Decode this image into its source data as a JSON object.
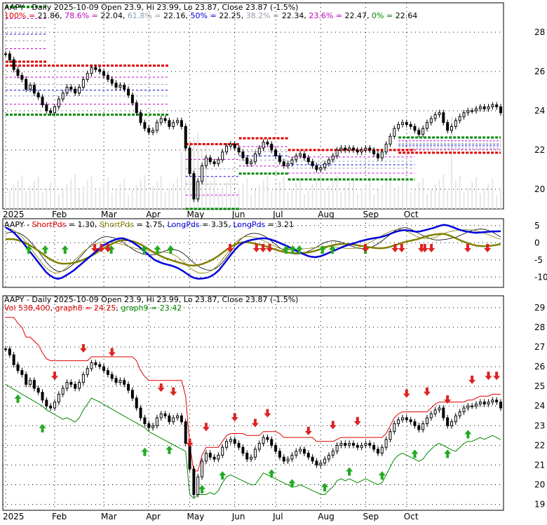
{
  "colors": {
    "red": "#dd0000",
    "green": "#008800",
    "blue": "#0000dd",
    "olive": "#808000",
    "fib_786": "#c000c0",
    "fib_618": "#8fa0b0",
    "fib_382": "#8fa0b0",
    "fib_236": "#c000c0",
    "fib_0": "#008800"
  },
  "chart_data": [
    {
      "type": "candlestick",
      "panel": "fibonacci",
      "title": "AAPY - Daily 2025-10-09 Open 23.9, Hi 23.99, Lo 23.87, Close 23.87 (-1.5%)",
      "fib_legend": [
        {
          "label": "100%",
          "value": "21.86",
          "color_key": "red"
        },
        {
          "label": "78.6%",
          "value": "22.04",
          "color_key": "fib_786"
        },
        {
          "label": "61.8%",
          "value": "22.16",
          "color_key": "fib_618"
        },
        {
          "label": "50%",
          "value": "22.25",
          "color_key": "blue"
        },
        {
          "label": "38.2%",
          "value": "22.34",
          "color_key": "fib_382"
        },
        {
          "label": "23.6%",
          "value": "22.47",
          "color_key": "fib_236"
        },
        {
          "label": "0%",
          "value": "22.64",
          "color_key": "fib_0"
        }
      ],
      "yticks": [
        "20",
        "22",
        "24",
        "26",
        "28"
      ],
      "ylim": [
        19,
        29.5
      ],
      "xticks": [
        "2025",
        "Feb",
        "Mar",
        "Apr",
        "May",
        "Jun",
        "Jul",
        "Aug",
        "Sep",
        "Oct"
      ],
      "closes": [
        26.9,
        26.6,
        26.1,
        25.8,
        25.6,
        25.1,
        25.3,
        24.9,
        24.7,
        24.3,
        24.0,
        23.9,
        24.2,
        24.6,
        24.9,
        25.2,
        25.1,
        24.9,
        25.2,
        25.6,
        25.9,
        26.2,
        26.1,
        26.0,
        25.8,
        25.6,
        25.4,
        25.2,
        25.3,
        25.1,
        24.8,
        24.4,
        23.9,
        23.4,
        23.1,
        22.9,
        23.0,
        23.4,
        23.6,
        23.5,
        23.2,
        23.4,
        23.5,
        23.2,
        22.1,
        20.8,
        19.5,
        20.4,
        21.2,
        21.6,
        21.4,
        21.3,
        21.5,
        21.9,
        22.2,
        22.3,
        22.1,
        21.9,
        21.6,
        21.3,
        21.4,
        21.8,
        22.1,
        22.4,
        22.3,
        22.0,
        21.7,
        21.4,
        21.2,
        21.3,
        21.5,
        21.7,
        21.8,
        21.6,
        21.4,
        21.2,
        21.0,
        21.1,
        21.3,
        21.5,
        21.7,
        22.0,
        22.1,
        22.0,
        22.1,
        22.0,
        21.9,
        22.0,
        22.1,
        22.0,
        21.8,
        21.6,
        21.9,
        22.3,
        22.7,
        23.1,
        23.3,
        23.4,
        23.3,
        23.2,
        23.0,
        22.8,
        23.1,
        23.4,
        23.6,
        23.8,
        23.9,
        23.4,
        23.0,
        23.2,
        23.5,
        23.7,
        23.9,
        24.0,
        24.0,
        24.1,
        24.2,
        24.1,
        24.2,
        24.3,
        24.2,
        23.9
      ],
      "fib_levels": [
        21.86,
        22.04,
        22.16,
        22.25,
        22.34,
        22.47,
        22.64
      ]
    },
    {
      "type": "line",
      "panel": "indicator",
      "title": "AAPY - ShortPds = 1.30, ShortPds = 1.75, LongPds = 3.35, LongPds = 3.21",
      "legend": [
        {
          "name": "AAPY",
          "color_key": "blue"
        },
        {
          "name": "ShortPds",
          "value": "1.30",
          "color_key": "red"
        },
        {
          "name": "ShortPds",
          "value": "1.75",
          "color_key": "olive"
        },
        {
          "name": "LongPds",
          "value": "3.35",
          "color_key": "blue"
        },
        {
          "name": "LongPds",
          "value": "3.21",
          "color_key": "blue"
        }
      ],
      "yticks": [
        "5",
        "0",
        "-5",
        "-10"
      ],
      "ylim": [
        -13,
        7
      ],
      "up_arrow_x": [
        7,
        12,
        18,
        32,
        42,
        46,
        50,
        85,
        87,
        89,
        96,
        99,
        109
      ],
      "down_arrow_x": [
        27,
        29,
        31,
        68,
        76,
        78,
        80,
        109,
        118,
        120,
        126,
        127,
        129,
        140,
        146
      ],
      "long": [
        4.5,
        3.8,
        3.0,
        1.8,
        0.5,
        -1,
        -2.5,
        -4,
        -5.5,
        -7,
        -8.5,
        -9.5,
        -10.2,
        -10.5,
        -10.2,
        -9.5,
        -8.8,
        -8,
        -7,
        -6,
        -5,
        -4,
        -3,
        -2,
        -1,
        -0.3,
        0.3,
        0.8,
        1.2,
        1.3,
        1.0,
        0.5,
        -0.2,
        -1,
        -2,
        -3,
        -4,
        -5,
        -5.5,
        -6,
        -6.3,
        -6.6,
        -7,
        -7.5,
        -8.2,
        -9,
        -9.8,
        -10.3,
        -10.5,
        -10.4,
        -10.2,
        -9.8,
        -9,
        -8,
        -6.5,
        -5,
        -3.5,
        -2,
        -0.8,
        0,
        0.5,
        0.8,
        1.0,
        1.2,
        1.3,
        1.2,
        0.9,
        0.5,
        0,
        -0.5,
        -1,
        -1.6,
        -2.2,
        -2.8,
        -3.3,
        -3.8,
        -4.1,
        -4.2,
        -4.0,
        -3.6,
        -3.1,
        -2.6,
        -2.1,
        -1.6,
        -1.1,
        -0.7,
        -0.3,
        0,
        0.4,
        0.7,
        1.0,
        1.2,
        1.4,
        1.6,
        1.9,
        2.3,
        2.8,
        3.2,
        3.5,
        3.7,
        3.6,
        3.4,
        3.2,
        3.3,
        3.6,
        3.9,
        4.2,
        4.6,
        5.0,
        5.2,
        5.0,
        4.6,
        4.1,
        3.7,
        3.4,
        3.2,
        3.0,
        2.9,
        3.0,
        3.1,
        3.2,
        3.3,
        3.3,
        3.35
      ]
    },
    {
      "type": "candlestick",
      "panel": "volume",
      "title": "AAPY - Daily 2025-10-09 Open 23.9, Hi 23.99, Lo 23.87, Close 23.87 (-1.5%)",
      "legend": [
        {
          "label": "Vol 538,400",
          "color_key": "red"
        },
        {
          "label": "graph8 = 24.25",
          "color_key": "red"
        },
        {
          "label": "graph9 = 23.42",
          "color_key": "green"
        }
      ],
      "yticks": [
        "19",
        "20",
        "21",
        "22",
        "23",
        "24",
        "25",
        "26",
        "27",
        "28",
        "29"
      ],
      "ylim": [
        18.7,
        29.6
      ],
      "xticks": [
        "2025",
        "Feb",
        "Mar",
        "Apr",
        "May",
        "Jun",
        "Jul",
        "Aug",
        "Sep",
        "Oct"
      ]
    }
  ]
}
